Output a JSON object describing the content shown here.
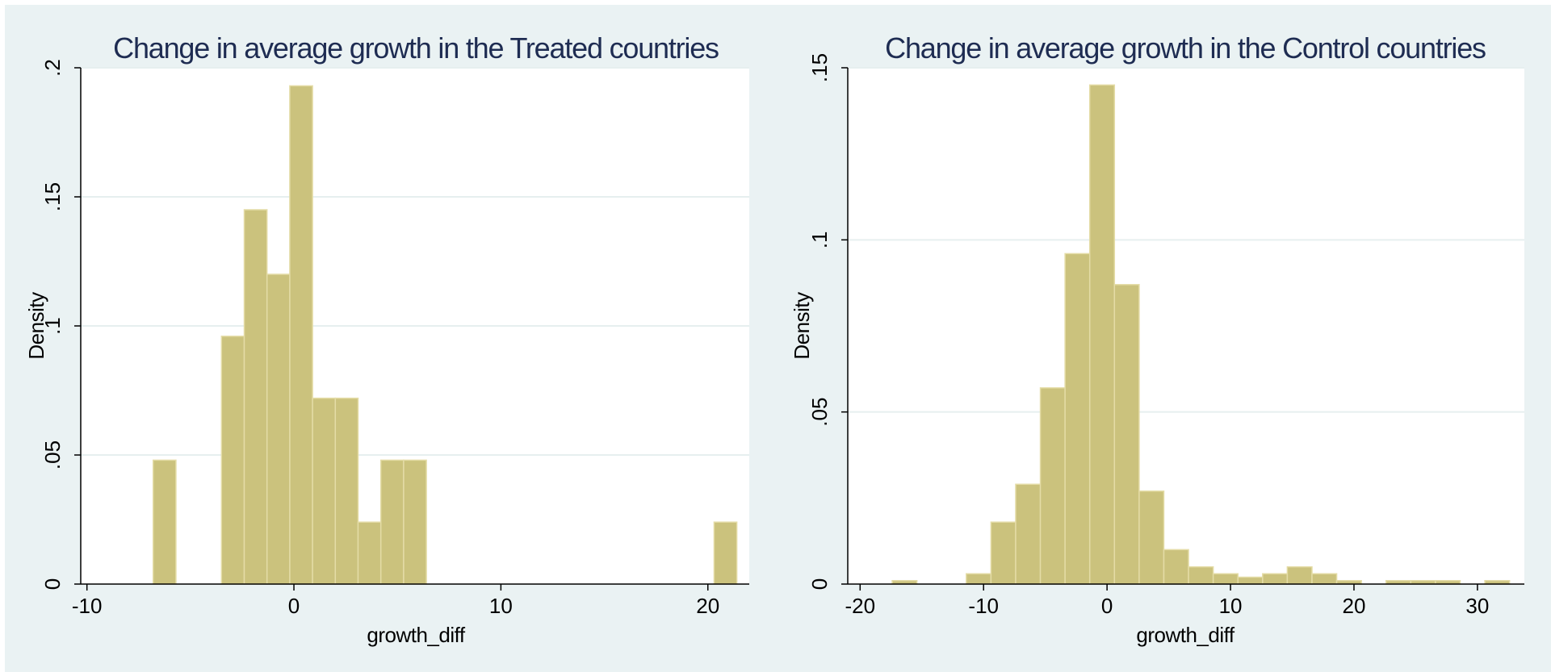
{
  "chart_data": [
    {
      "type": "bar",
      "title": "Change in average growth in the Treated countries",
      "xlabel": "growth_diff",
      "ylabel": "Density",
      "xlim": [
        -10.3,
        22.0
      ],
      "ylim": [
        0,
        0.2
      ],
      "x_ticks": [
        -10,
        0,
        10,
        20
      ],
      "x_tick_labels": [
        "-10",
        "0",
        "10",
        "20"
      ],
      "y_ticks": [
        0,
        0.05,
        0.1,
        0.15,
        0.2
      ],
      "y_tick_labels": [
        "0",
        ".05",
        ".1",
        ".15",
        ".2"
      ],
      "grid": true,
      "bin_width": 1.1,
      "bins": [
        {
          "start": -6.8,
          "density": 0.048
        },
        {
          "start": -3.5,
          "density": 0.096
        },
        {
          "start": -2.4,
          "density": 0.145
        },
        {
          "start": -1.3,
          "density": 0.12
        },
        {
          "start": -0.2,
          "density": 0.193
        },
        {
          "start": 0.9,
          "density": 0.072
        },
        {
          "start": 2.0,
          "density": 0.072
        },
        {
          "start": 3.1,
          "density": 0.024
        },
        {
          "start": 4.2,
          "density": 0.048
        },
        {
          "start": 5.3,
          "density": 0.048
        },
        {
          "start": 20.3,
          "density": 0.024
        }
      ]
    },
    {
      "type": "bar",
      "title": "Change in average growth in the Control countries",
      "xlabel": "growth_diff",
      "ylabel": "Density",
      "xlim": [
        -21.0,
        33.8
      ],
      "ylim": [
        0,
        0.15
      ],
      "x_ticks": [
        -20,
        -10,
        0,
        10,
        20,
        30
      ],
      "x_tick_labels": [
        "-20",
        "-10",
        "0",
        "10",
        "20",
        "30"
      ],
      "y_ticks": [
        0,
        0.05,
        0.1,
        0.15
      ],
      "y_tick_labels": [
        "0",
        ".05",
        ".1",
        ".15"
      ],
      "grid": true,
      "bin_width": 2.0,
      "bins": [
        {
          "start": -17.4,
          "density": 0.001
        },
        {
          "start": -11.4,
          "density": 0.003
        },
        {
          "start": -9.4,
          "density": 0.018
        },
        {
          "start": -7.4,
          "density": 0.029
        },
        {
          "start": -5.4,
          "density": 0.057
        },
        {
          "start": -3.4,
          "density": 0.096
        },
        {
          "start": -1.4,
          "density": 0.145
        },
        {
          "start": 0.6,
          "density": 0.087
        },
        {
          "start": 2.6,
          "density": 0.027
        },
        {
          "start": 4.6,
          "density": 0.01
        },
        {
          "start": 6.6,
          "density": 0.005
        },
        {
          "start": 8.6,
          "density": 0.003
        },
        {
          "start": 10.6,
          "density": 0.002
        },
        {
          "start": 12.6,
          "density": 0.003
        },
        {
          "start": 14.6,
          "density": 0.005
        },
        {
          "start": 16.6,
          "density": 0.003
        },
        {
          "start": 18.6,
          "density": 0.001
        },
        {
          "start": 22.6,
          "density": 0.001
        },
        {
          "start": 24.6,
          "density": 0.001
        },
        {
          "start": 26.6,
          "density": 0.001
        },
        {
          "start": 30.6,
          "density": 0.001
        }
      ]
    }
  ],
  "colors": {
    "bar_fill": "#cbc27d",
    "bar_edge": "#e4dca6",
    "grid": "#e6efef",
    "title": "#1e2c52",
    "panel_bg": "#eaf2f3",
    "plot_bg": "#ffffff"
  }
}
